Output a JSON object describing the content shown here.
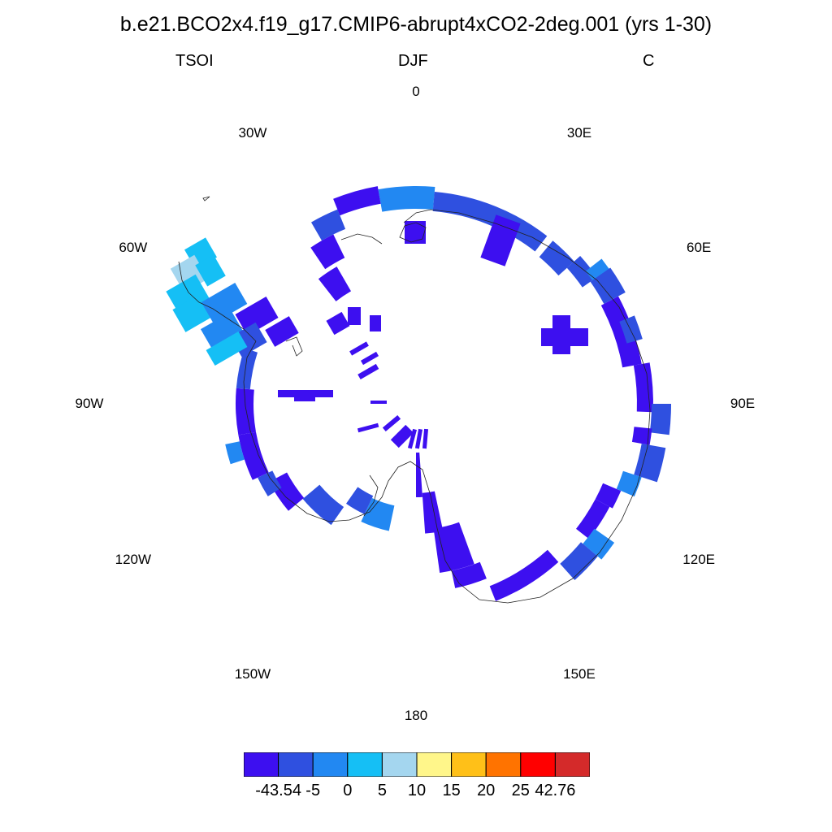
{
  "title": "b.e21.BCO2x4.f19_g17.CMIP6-abrupt4xCO2-2deg.001 (yrs 1-30)",
  "subtitle": {
    "left": "TSOI",
    "center": "DJF",
    "right": "C"
  },
  "longitude_labels": [
    {
      "text": "0",
      "lon": 0
    },
    {
      "text": "30E",
      "lon": 30
    },
    {
      "text": "60E",
      "lon": 60
    },
    {
      "text": "90E",
      "lon": 90
    },
    {
      "text": "120E",
      "lon": 120
    },
    {
      "text": "150E",
      "lon": 150
    },
    {
      "text": "180",
      "lon": 180
    },
    {
      "text": "150W",
      "lon": -150
    },
    {
      "text": "120W",
      "lon": -120
    },
    {
      "text": "90W",
      "lon": -90
    },
    {
      "text": "60W",
      "lon": -60
    },
    {
      "text": "30W",
      "lon": -30
    }
  ],
  "colorbar": {
    "colors": [
      "#3d0ff0",
      "#2f50e0",
      "#2288f2",
      "#15bff5",
      "#a4d6ef",
      "#fff68a",
      "#ffc018",
      "#ff7300",
      "#ff0000",
      "#d42a2a"
    ],
    "labels": [
      "-43.54",
      "-5",
      "0",
      "5",
      "10",
      "15",
      "20",
      "25",
      "42.76"
    ]
  },
  "map_data": {
    "projection": "south-polar-stereographic",
    "region": "Antarctica",
    "field": "TSOI",
    "season": "DJF",
    "units": "C",
    "dominant_color": "#3d0ff0"
  }
}
